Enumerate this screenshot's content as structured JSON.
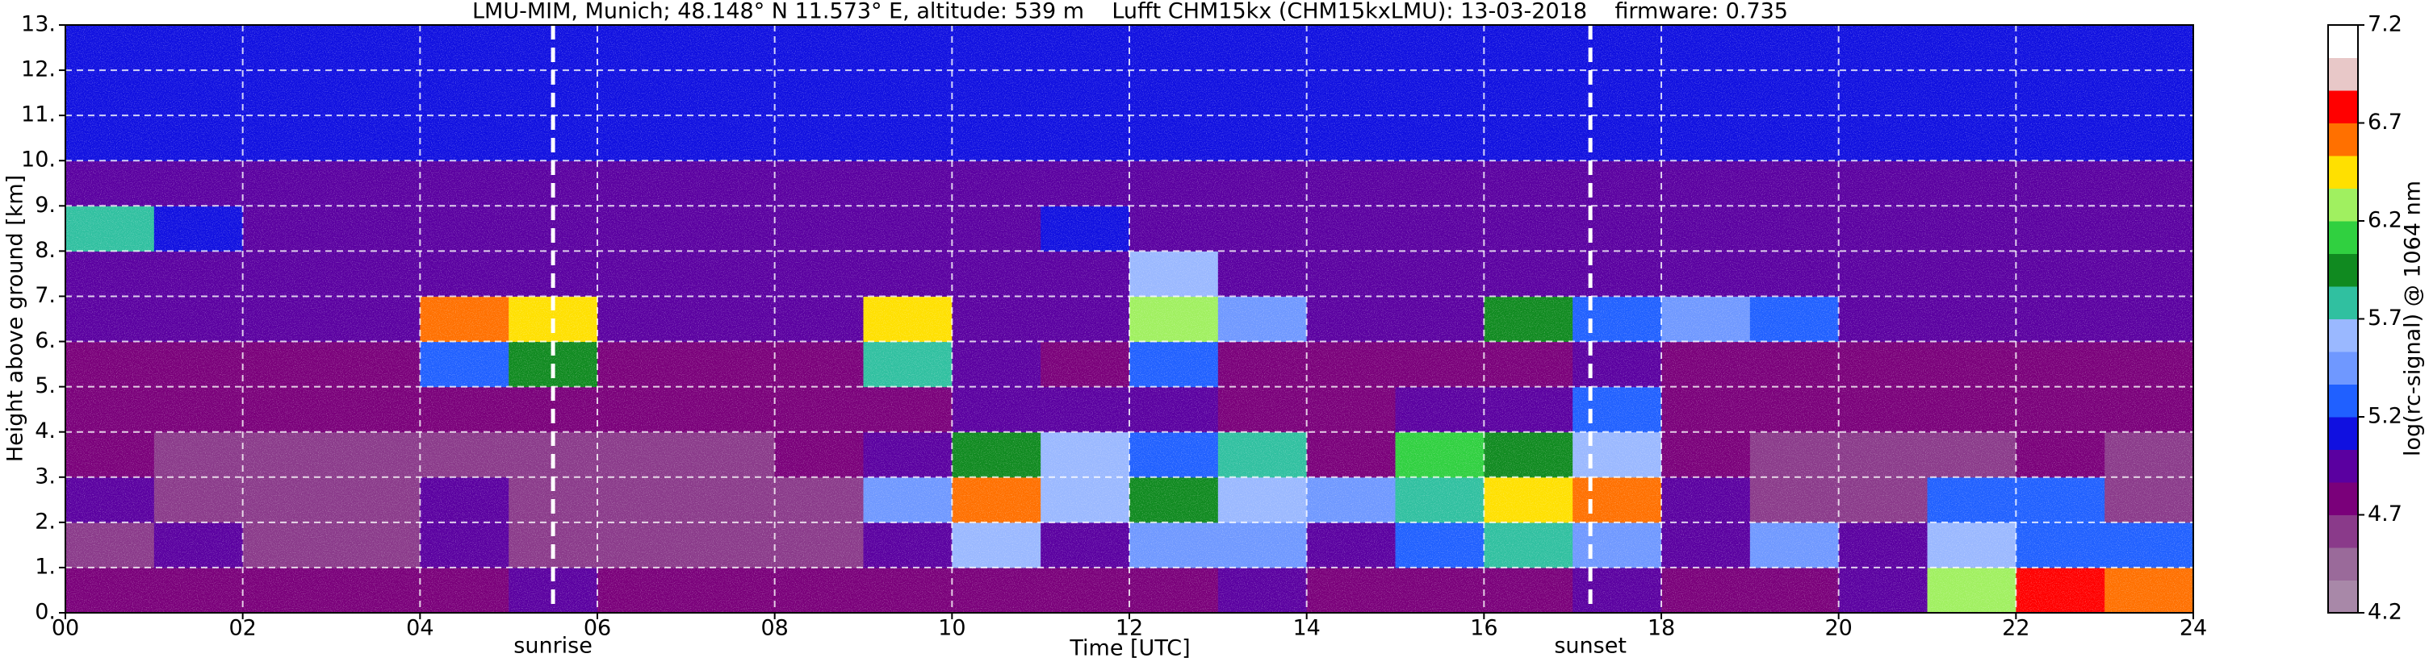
{
  "chart_data": {
    "type": "heatmap",
    "title": "LMU-MIM, Munich; 48.148° N 11.573° E, altitude: 539 m    Lufft CHM15kx (CHM15kxLMU): 13-03-2018    firmware: 0.735",
    "xlabel": "Time [UTC]",
    "ylabel": "Height above ground [km]",
    "colorbar_label": "log(rc-signal) @ 1064 nm",
    "xlim": [
      0,
      24
    ],
    "ylim": [
      0,
      13
    ],
    "xticks": [
      {
        "value": 0,
        "label": "00"
      },
      {
        "value": 2,
        "label": "02"
      },
      {
        "value": 4,
        "label": "04"
      },
      {
        "value": 6,
        "label": "06"
      },
      {
        "value": 8,
        "label": "08"
      },
      10,
      12,
      14,
      16,
      18,
      20,
      22,
      24
    ],
    "yticks": [
      {
        "value": 0,
        "label": "0."
      },
      {
        "value": 1,
        "label": "1."
      },
      {
        "value": 2,
        "label": "2."
      },
      {
        "value": 3,
        "label": "3."
      },
      {
        "value": 4,
        "label": "4."
      },
      {
        "value": 5,
        "label": "5."
      },
      {
        "value": 6,
        "label": "6."
      },
      {
        "value": 7,
        "label": "7."
      },
      {
        "value": 8,
        "label": "8."
      },
      {
        "value": 9,
        "label": "9."
      },
      {
        "value": 10,
        "label": "10."
      },
      {
        "value": 11,
        "label": "11."
      },
      {
        "value": 12,
        "label": "12."
      },
      {
        "value": 13,
        "label": "13."
      }
    ],
    "grid": true,
    "clim": [
      4.2,
      7.2
    ],
    "cticks": [
      4.2,
      4.7,
      5.2,
      5.7,
      6.2,
      6.7,
      7.2
    ],
    "colors": [
      "#a888a8",
      "#9a6a9a",
      "#8a3a8a",
      "#7a007a",
      "#5a00a0",
      "#1010e0",
      "#2060ff",
      "#6f98ff",
      "#9ab8ff",
      "#30c0a0",
      "#108a20",
      "#30d040",
      "#a0f060",
      "#ffe000",
      "#ff7000",
      "#ff0000",
      "#e8c8c8",
      "#ffffff"
    ],
    "xbins": [
      0,
      1,
      2,
      3,
      4,
      5,
      6,
      7,
      8,
      9,
      10,
      11,
      12,
      13,
      14,
      15,
      16,
      17,
      18,
      19,
      20,
      21,
      22,
      23,
      24
    ],
    "ybins": [
      0,
      1,
      2,
      3,
      4,
      5,
      6,
      7,
      8,
      9,
      10,
      11,
      12,
      13
    ],
    "values": [
      [
        4.8,
        4.8,
        4.8,
        4.8,
        4.8,
        4.9,
        4.8,
        4.8,
        4.8,
        4.8,
        4.8,
        4.8,
        4.8,
        4.9,
        4.8,
        4.8,
        4.8,
        5.0,
        4.8,
        4.8,
        4.9,
        6.2,
        6.7,
        6.6
      ],
      [
        4.6,
        4.9,
        4.6,
        4.6,
        4.9,
        4.6,
        4.6,
        4.6,
        4.6,
        5.0,
        5.6,
        4.9,
        5.4,
        5.5,
        5.0,
        5.2,
        5.8,
        5.4,
        4.9,
        5.4,
        5.0,
        5.6,
        5.3,
        5.2
      ],
      [
        5.0,
        4.6,
        4.6,
        4.6,
        4.9,
        4.6,
        4.6,
        4.6,
        4.6,
        5.5,
        6.6,
        5.6,
        6.0,
        5.6,
        5.5,
        5.8,
        6.4,
        6.6,
        5.0,
        4.6,
        4.6,
        5.2,
        5.3,
        4.6
      ],
      [
        4.7,
        4.6,
        4.6,
        4.6,
        4.6,
        4.6,
        4.6,
        4.6,
        4.7,
        5.0,
        6.0,
        5.6,
        5.3,
        5.7,
        4.8,
        6.1,
        6.0,
        5.6,
        4.8,
        4.6,
        4.6,
        4.6,
        4.7,
        4.6
      ],
      [
        4.7,
        4.7,
        4.7,
        4.7,
        4.7,
        4.7,
        4.7,
        4.7,
        4.7,
        4.7,
        5.0,
        4.9,
        5.0,
        4.8,
        4.7,
        4.9,
        5.0,
        5.2,
        4.7,
        4.7,
        4.7,
        4.7,
        4.7,
        4.7
      ],
      [
        4.8,
        4.8,
        4.8,
        4.8,
        5.2,
        6.0,
        4.8,
        4.8,
        4.8,
        5.8,
        5.0,
        4.8,
        5.2,
        4.8,
        4.8,
        4.8,
        4.8,
        5.0,
        4.8,
        4.8,
        4.8,
        4.8,
        4.8,
        4.8
      ],
      [
        4.9,
        4.9,
        4.9,
        4.9,
        6.6,
        6.4,
        4.9,
        4.9,
        4.9,
        6.5,
        5.0,
        4.9,
        6.3,
        5.5,
        4.9,
        4.9,
        6.0,
        5.2,
        5.4,
        5.2,
        4.9,
        4.9,
        4.9,
        4.9
      ],
      [
        5.0,
        5.0,
        5.0,
        5.0,
        5.0,
        5.0,
        5.0,
        5.0,
        5.0,
        5.0,
        5.0,
        5.0,
        5.6,
        5.0,
        5.0,
        5.0,
        5.0,
        5.0,
        5.0,
        5.0,
        5.0,
        5.0,
        5.0,
        5.0
      ],
      [
        5.8,
        5.1,
        5.0,
        5.0,
        5.0,
        5.0,
        5.0,
        5.0,
        5.0,
        5.0,
        5.0,
        5.1,
        5.0,
        5.0,
        5.0,
        5.0,
        5.0,
        5.0,
        5.0,
        5.0,
        5.0,
        5.0,
        5.0,
        5.0
      ],
      [
        5.0,
        5.0,
        5.0,
        5.0,
        5.0,
        5.0,
        5.0,
        5.0,
        5.0,
        5.0,
        5.0,
        5.0,
        5.0,
        5.0,
        5.0,
        5.0,
        5.0,
        5.0,
        5.0,
        5.0,
        5.0,
        5.0,
        5.0,
        5.0
      ],
      [
        5.1,
        5.1,
        5.1,
        5.1,
        5.1,
        5.1,
        5.1,
        5.1,
        5.1,
        5.1,
        5.1,
        5.1,
        5.1,
        5.1,
        5.1,
        5.1,
        5.1,
        5.1,
        5.1,
        5.1,
        5.1,
        5.1,
        5.1,
        5.1
      ],
      [
        5.1,
        5.1,
        5.1,
        5.1,
        5.1,
        5.1,
        5.1,
        5.1,
        5.1,
        5.1,
        5.1,
        5.1,
        5.1,
        5.1,
        5.1,
        5.1,
        5.1,
        5.1,
        5.1,
        5.1,
        5.1,
        5.1,
        5.1,
        5.1
      ],
      [
        5.1,
        5.1,
        5.1,
        5.1,
        5.1,
        5.1,
        5.1,
        5.1,
        5.1,
        5.1,
        5.1,
        5.1,
        5.1,
        5.1,
        5.1,
        5.1,
        5.1,
        5.1,
        5.1,
        5.1,
        5.1,
        5.1,
        5.1,
        5.1
      ]
    ],
    "annotations": [
      {
        "text": "sunrise",
        "x": 5.5
      },
      {
        "text": "sunset",
        "x": 17.2
      }
    ]
  }
}
